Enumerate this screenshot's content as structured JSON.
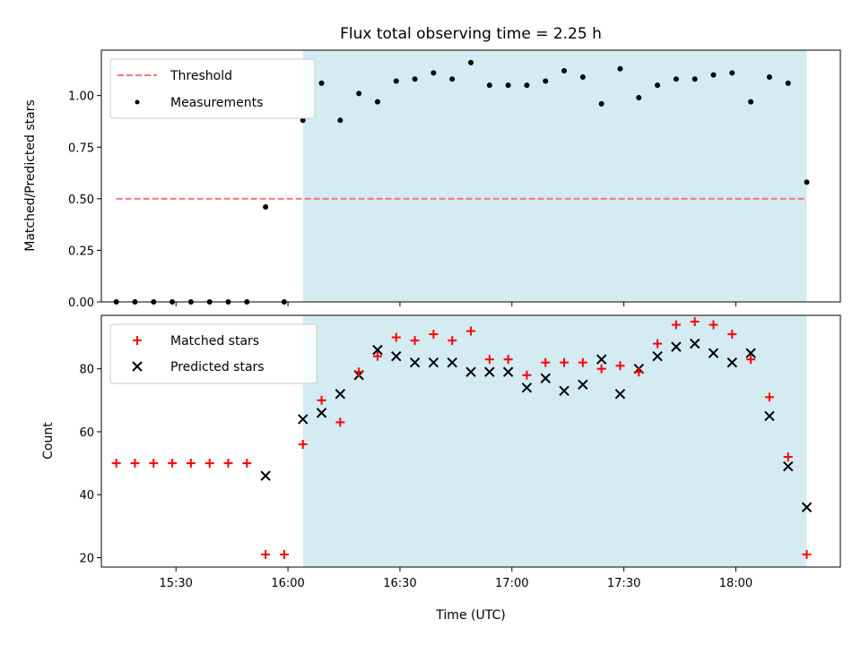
{
  "chart_data": [
    {
      "type": "scatter",
      "panel": "top",
      "title": "Flux total observing time = 2.25 h",
      "xlabel": "",
      "ylabel": "Matched/Predicted stars",
      "ylim": [
        0,
        1.22
      ],
      "yticks": [
        "0.00",
        "0.25",
        "0.50",
        "0.75",
        "1.00"
      ],
      "shaded_interval": {
        "from": "16:04",
        "to": "18:19",
        "color": "#d3ebf1"
      },
      "threshold": {
        "name": "Threshold",
        "value": 0.5,
        "from": "15:14",
        "to": "18:19",
        "color": "#f07878"
      },
      "series": [
        {
          "name": "Measurements",
          "color": "#000000",
          "x": [
            "15:14",
            "15:19",
            "15:24",
            "15:29",
            "15:34",
            "15:39",
            "15:44",
            "15:49",
            "15:54",
            "15:59",
            "16:04",
            "16:09",
            "16:14",
            "16:19",
            "16:24",
            "16:29",
            "16:34",
            "16:39",
            "16:44",
            "16:49",
            "16:54",
            "16:59",
            "17:04",
            "17:09",
            "17:14",
            "17:19",
            "17:24",
            "17:29",
            "17:34",
            "17:39",
            "17:44",
            "17:49",
            "17:54",
            "17:59",
            "18:04",
            "18:09",
            "18:14",
            "18:19"
          ],
          "y": [
            0,
            0,
            0,
            0,
            0,
            0,
            0,
            0,
            0.46,
            0,
            0.88,
            1.06,
            0.88,
            1.01,
            0.97,
            1.07,
            1.08,
            1.11,
            1.08,
            1.16,
            1.05,
            1.05,
            1.05,
            1.07,
            1.12,
            1.09,
            0.96,
            1.13,
            0.99,
            1.05,
            1.08,
            1.08,
            1.1,
            1.11,
            0.97,
            1.09,
            1.06,
            0.58
          ]
        }
      ],
      "legend": {
        "placement": "top-left"
      }
    },
    {
      "type": "scatter",
      "panel": "bottom",
      "title": "",
      "xlabel": "Time (UTC)",
      "ylabel": "Count",
      "ylim": [
        17,
        97
      ],
      "yticks": [
        "20",
        "40",
        "60",
        "80"
      ],
      "xticks": [
        "15:30",
        "16:00",
        "16:30",
        "17:00",
        "17:30",
        "18:00"
      ],
      "xlim": [
        "15:10",
        "18:28"
      ],
      "shaded_interval": {
        "from": "16:04",
        "to": "18:19",
        "color": "#d3ebf1"
      },
      "series": [
        {
          "name": "Matched stars",
          "color": "#ff0000",
          "marker": "+",
          "x": [
            "15:14",
            "15:19",
            "15:24",
            "15:29",
            "15:34",
            "15:39",
            "15:44",
            "15:49",
            "15:54",
            "15:59",
            "16:04",
            "16:09",
            "16:14",
            "16:19",
            "16:24",
            "16:29",
            "16:34",
            "16:39",
            "16:44",
            "16:49",
            "16:54",
            "16:59",
            "17:04",
            "17:09",
            "17:14",
            "17:19",
            "17:24",
            "17:29",
            "17:34",
            "17:39",
            "17:44",
            "17:49",
            "17:54",
            "17:59",
            "18:04",
            "18:09",
            "18:14",
            "18:19"
          ],
          "y": [
            50,
            50,
            50,
            50,
            50,
            50,
            50,
            50,
            21,
            21,
            56,
            70,
            63,
            79,
            84,
            90,
            89,
            91,
            89,
            92,
            83,
            83,
            78,
            82,
            82,
            82,
            80,
            81,
            79,
            88,
            94,
            95,
            94,
            91,
            83,
            71,
            52,
            21
          ]
        },
        {
          "name": "Predicted stars",
          "color": "#000000",
          "marker": "x",
          "x": [
            "15:54",
            "16:04",
            "16:09",
            "16:14",
            "16:19",
            "16:24",
            "16:29",
            "16:34",
            "16:39",
            "16:44",
            "16:49",
            "16:54",
            "16:59",
            "17:04",
            "17:09",
            "17:14",
            "17:19",
            "17:24",
            "17:29",
            "17:34",
            "17:39",
            "17:44",
            "17:49",
            "17:54",
            "17:59",
            "18:04",
            "18:09",
            "18:14",
            "18:19"
          ],
          "y": [
            46,
            64,
            66,
            72,
            78,
            86,
            84,
            82,
            82,
            82,
            79,
            79,
            79,
            74,
            77,
            73,
            75,
            83,
            72,
            80,
            84,
            87,
            88,
            85,
            82,
            85,
            65,
            49,
            36
          ]
        }
      ],
      "legend": {
        "placement": "top-left"
      }
    }
  ]
}
